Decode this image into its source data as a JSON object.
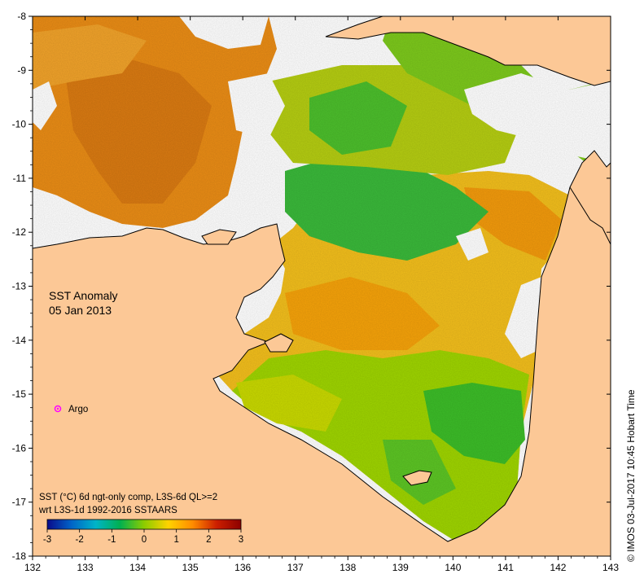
{
  "map": {
    "title_line1": "SST Anomaly",
    "title_line2": "05 Jan 2013",
    "legend_label": "Argo",
    "footnote_line1": "SST (°C) 6d ngt-only comp, L3S-6d QL>=2",
    "footnote_line2": "wrt L3S-1d 1992-2016 SSTAARS",
    "credit": "© IMOS 03-Jul-2017 10:45 Hobart Time",
    "colors": {
      "land": "#fcc896",
      "ocean_nodata": "#ffffff",
      "argo_marker": "#ff00ff",
      "coastline": "#000000"
    },
    "colorbar": {
      "min": -3,
      "max": 3,
      "ticks": [
        "-3",
        "-2",
        "-1",
        "0",
        "1",
        "2",
        "3"
      ],
      "stops": [
        "#0a0a8a",
        "#0064c8",
        "#00b4c8",
        "#00b050",
        "#8ccc00",
        "#ffd200",
        "#ff8c00",
        "#cc1e00",
        "#8c0000"
      ]
    },
    "axes": {
      "x_ticks": [
        "132",
        "133",
        "134",
        "135",
        "136",
        "137",
        "138",
        "139",
        "140",
        "141",
        "142",
        "143"
      ],
      "y_ticks": [
        "-8",
        "-9",
        "-10",
        "-11",
        "-12",
        "-13",
        "-14",
        "-15",
        "-16",
        "-17",
        "-18"
      ],
      "lon_range": [
        132,
        143
      ],
      "lat_range": [
        -18,
        -8
      ]
    }
  }
}
